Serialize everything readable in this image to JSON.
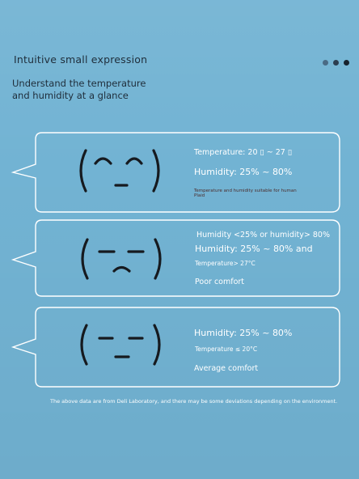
{
  "heading": "Intuitive small expression",
  "subheading": "Understand the temperature and humidity at a glance",
  "cards": [
    {
      "face": "( ⌒⌒\n   _  )",
      "lines": [
        "Temperature: 20 ▯ ~ 27 ▯",
        "Humidity: 25% ~ 80%",
        "Temperature and humidity suitable for human",
        "Plaid"
      ]
    },
    {
      "face": "( ‐ ‐ )",
      "lines": [
        "Humidity <25% or humidity> 80%",
        "Humidity: 25% ~ 80% and",
        "Temperature> 27°C",
        "Poor comfort"
      ]
    },
    {
      "face": "( ‐ ‐ )",
      "lines": [
        "Humidity: 25% ~ 80%",
        "Temperature ≤ 20°C",
        "Average comfort"
      ]
    }
  ],
  "footer": "The above data are from Deli Laboratory, and there may be some deviations depending on the environment.",
  "colors": {
    "background": "#72b3d3",
    "face": "#161a1f",
    "text": "#ffffff"
  }
}
